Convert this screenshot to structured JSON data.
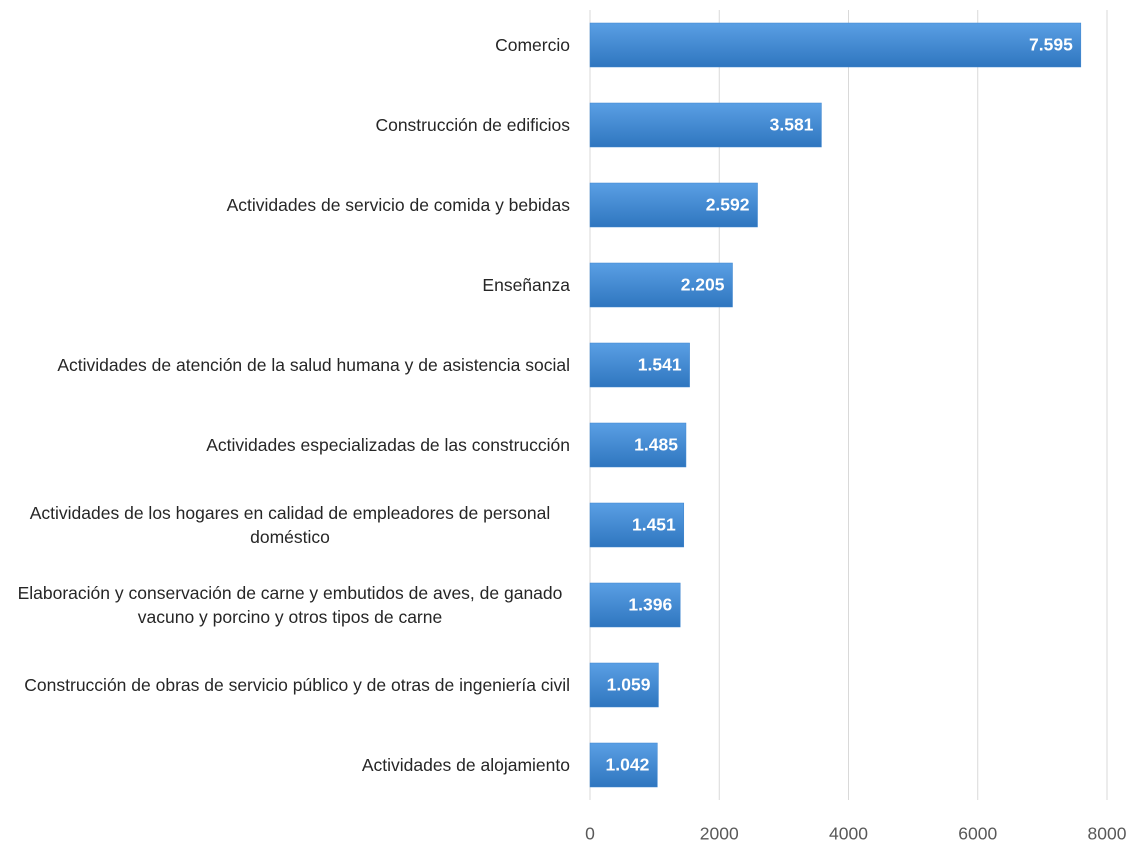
{
  "chart_data": {
    "type": "bar",
    "orientation": "horizontal",
    "categories": [
      "Comercio",
      "Construcción de edificios",
      "Actividades de servicio de comida y bebidas",
      "Enseñanza",
      "Actividades de atención de la salud humana y de asistencia social",
      "Actividades especializadas de las construcción",
      "Actividades de los hogares en calidad de empleadores de personal doméstico",
      "Elaboración y conservación de carne y embutidos de aves, de ganado vacuno y porcino y otros tipos de carne",
      "Construcción de obras de servicio público y de otras de ingeniería civil",
      "Actividades de alojamiento"
    ],
    "values": [
      7595,
      3581,
      2592,
      2205,
      1541,
      1485,
      1451,
      1396,
      1059,
      1042
    ],
    "value_labels": [
      "7.595",
      "3.581",
      "2.592",
      "2.205",
      "1.541",
      "1.485",
      "1.451",
      "1.396",
      "1.059",
      "1.042"
    ],
    "color": "#3d85cf",
    "xlim": [
      0,
      8000
    ],
    "xticks": [
      0,
      2000,
      4000,
      6000,
      8000
    ],
    "grid": true
  }
}
